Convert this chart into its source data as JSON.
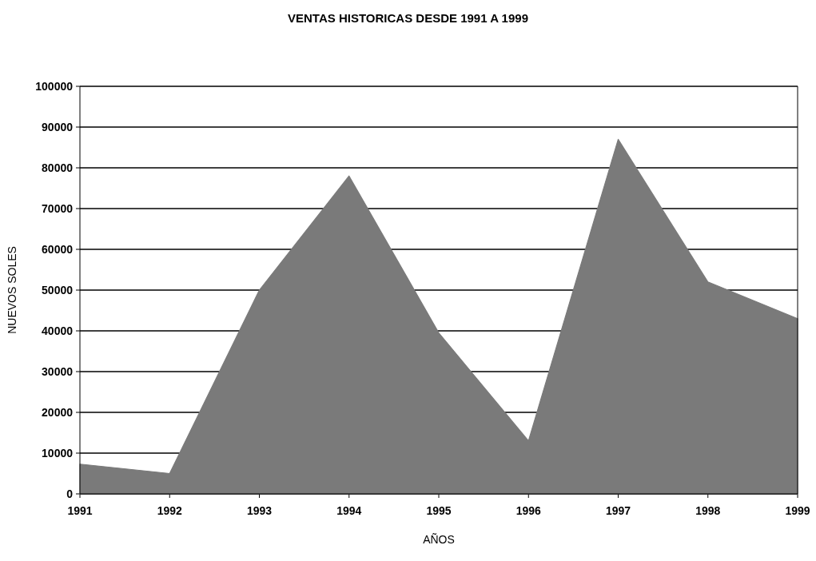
{
  "chart_data": {
    "type": "area",
    "title": "VENTAS HISTORICAS DESDE 1991 A 1999",
    "xlabel": "AÑOS",
    "ylabel": "NUEVOS SOLES",
    "categories": [
      "1991",
      "1992",
      "1993",
      "1994",
      "1995",
      "1996",
      "1997",
      "1998",
      "1999"
    ],
    "series": [
      {
        "color": "#7a7a7a",
        "values": [
          7300,
          5000,
          50000,
          78000,
          39500,
          13000,
          87000,
          52000,
          43000
        ]
      }
    ],
    "ylim": [
      0,
      100000
    ],
    "yticks": [
      0,
      10000,
      20000,
      30000,
      40000,
      50000,
      60000,
      70000,
      80000,
      90000,
      100000
    ],
    "grid": "y"
  }
}
